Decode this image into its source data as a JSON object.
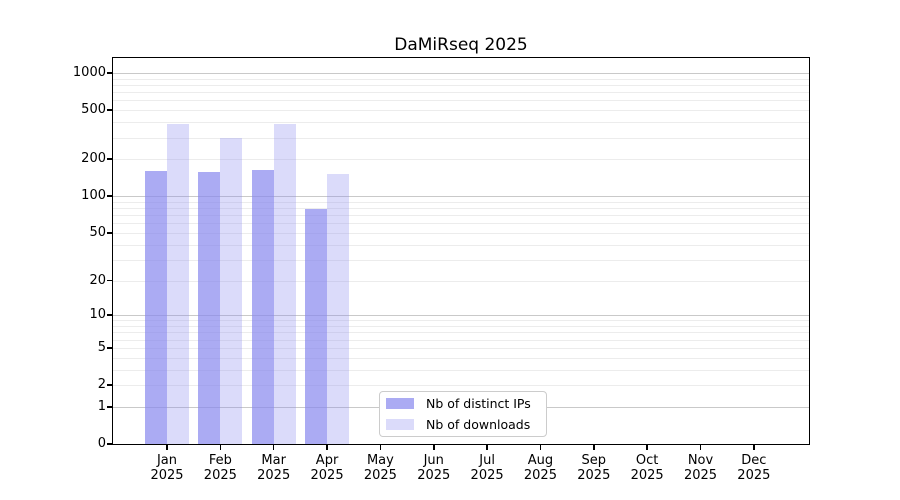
{
  "figure": {
    "background": "#ffffff"
  },
  "chart_data": {
    "type": "bar",
    "title": "DaMiRseq 2025",
    "categories": [
      "Jan 2025",
      "Feb 2025",
      "Mar 2025",
      "Apr 2025",
      "May 2025",
      "Jun 2025",
      "Jul 2025",
      "Aug 2025",
      "Sep 2025",
      "Oct 2025",
      "Nov 2025",
      "Dec 2025"
    ],
    "months": [
      "Jan",
      "Feb",
      "Mar",
      "Apr",
      "May",
      "Jun",
      "Jul",
      "Aug",
      "Sep",
      "Oct",
      "Nov",
      "Dec"
    ],
    "year_label": "2025",
    "series": [
      {
        "name": "Nb of distinct IPs",
        "color": "rgba(136,136,238,0.7)",
        "values": [
          160,
          158,
          164,
          78,
          0,
          0,
          0,
          0,
          0,
          0,
          0,
          0
        ]
      },
      {
        "name": "Nb of downloads",
        "color": "rgba(136,136,238,0.3)",
        "values": [
          384,
          299,
          388,
          153,
          0,
          0,
          0,
          0,
          0,
          0,
          0,
          0
        ]
      }
    ],
    "y_scale": "log1p",
    "y_ticks": [
      0,
      1,
      2,
      5,
      10,
      20,
      50,
      100,
      200,
      500,
      1000
    ],
    "y_major_gridlines": [
      1,
      10,
      100,
      1000
    ],
    "y_axis_top_value": 1250,
    "grid": "horizontal",
    "legend_position": "inside-bottom-center",
    "colors": {
      "bar_distinct_ips": "rgba(136,136,238,0.7)",
      "bar_downloads": "rgba(136,136,238,0.3)",
      "grid_minor": "#ececec",
      "grid_major": "#c9c9c9",
      "spine": "#000000",
      "legend_border": "#cccccc",
      "legend_background": "#ffffff"
    }
  },
  "legend": {
    "items": [
      {
        "label": "Nb of distinct IPs"
      },
      {
        "label": "Nb of downloads"
      }
    ]
  }
}
